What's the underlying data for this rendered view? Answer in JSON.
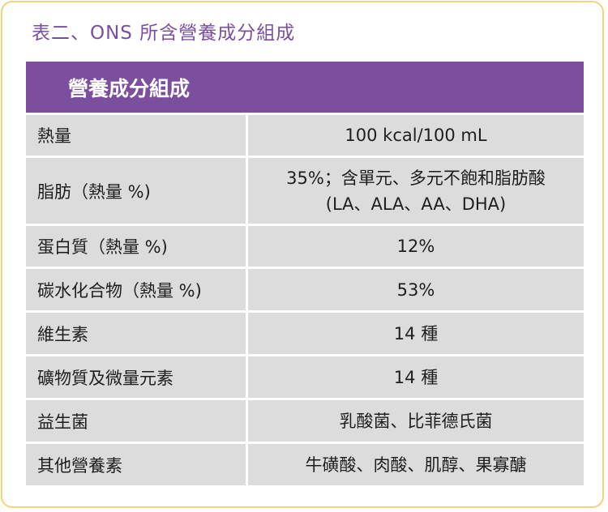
{
  "caption": "表二、ONS 所含營養成分組成",
  "table": {
    "header": "營養成分組成",
    "rows": [
      {
        "label": "熱量",
        "value": [
          "100 kcal/100 mL"
        ]
      },
      {
        "label": "脂肪（熱量 %)",
        "value": [
          "35%；含單元、多元不飽和脂肪酸",
          "(LA、ALA、AA、DHA)"
        ]
      },
      {
        "label": "蛋白質（熱量 %)",
        "value": [
          "12%"
        ]
      },
      {
        "label": "碳水化合物（熱量 %)",
        "value": [
          "53%"
        ]
      },
      {
        "label": "維生素",
        "value": [
          "14 種"
        ]
      },
      {
        "label": "礦物質及微量元素",
        "value": [
          "14 種"
        ]
      },
      {
        "label": "益生菌",
        "value": [
          "乳酸菌、比菲德氏菌"
        ]
      },
      {
        "label": "其他營養素",
        "value": [
          "牛磺酸、肉酸、肌醇、果寡醣"
        ]
      }
    ]
  }
}
